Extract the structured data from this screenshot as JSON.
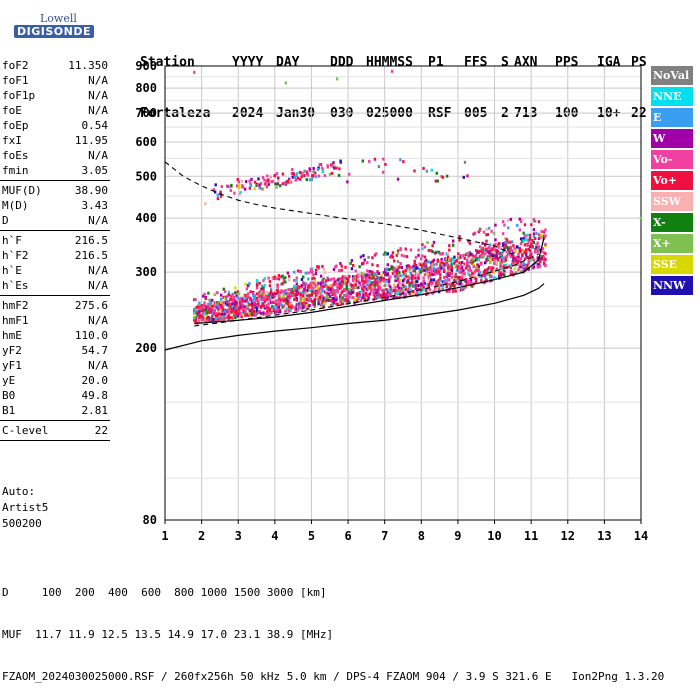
{
  "logo": {
    "line1": "Lowell",
    "line2": "DIGISONDE"
  },
  "header": {
    "labels": [
      "Station",
      "YYYY",
      "DAY",
      "DDD",
      "HHMMSS",
      "P1",
      "FFS",
      "S",
      "AXN",
      "PPS",
      "IGA",
      "PS"
    ],
    "values": [
      "Fortaleza",
      "2024",
      "Jan30",
      "030",
      "025000",
      "RSF",
      "005",
      "2",
      "713",
      "100",
      "10+",
      "22"
    ]
  },
  "params": {
    "g1": [
      {
        "k": "foF2",
        "v": "11.350"
      },
      {
        "k": "foF1",
        "v": "N/A"
      },
      {
        "k": "foF1p",
        "v": "N/A"
      },
      {
        "k": "foE",
        "v": "N/A"
      },
      {
        "k": "foEp",
        "v": "0.54"
      },
      {
        "k": "fxI",
        "v": "11.95"
      },
      {
        "k": "foEs",
        "v": "N/A"
      },
      {
        "k": "fmin",
        "v": "3.05"
      }
    ],
    "g2": [
      {
        "k": "MUF(D)",
        "v": "38.90"
      },
      {
        "k": "M(D)",
        "v": "3.43"
      },
      {
        "k": "D",
        "v": "N/A"
      }
    ],
    "g3": [
      {
        "k": "h`F",
        "v": "216.5"
      },
      {
        "k": "h`F2",
        "v": "216.5"
      },
      {
        "k": "h`E",
        "v": "N/A"
      },
      {
        "k": "h`Es",
        "v": "N/A"
      }
    ],
    "g4": [
      {
        "k": "hmF2",
        "v": "275.6"
      },
      {
        "k": "hmF1",
        "v": "N/A"
      },
      {
        "k": "hmE",
        "v": "110.0"
      },
      {
        "k": "yF2",
        "v": "54.7"
      },
      {
        "k": "yF1",
        "v": "N/A"
      },
      {
        "k": "yE",
        "v": "20.0"
      },
      {
        "k": "B0",
        "v": "49.8"
      },
      {
        "k": "B1",
        "v": "2.81"
      }
    ],
    "g5": [
      {
        "k": "C-level",
        "v": "22"
      }
    ]
  },
  "auto": {
    "l1": "Auto:",
    "l2": "Artist5",
    "l3": "500200"
  },
  "legend": [
    {
      "label": "NoVal",
      "color": "#808080"
    },
    {
      "label": "NNE",
      "color": "#00e0f0"
    },
    {
      "label": "E",
      "color": "#3a9ef0"
    },
    {
      "label": "W",
      "color": "#a000a8"
    },
    {
      "label": "Vo-",
      "color": "#f040a0"
    },
    {
      "label": "Vo+",
      "color": "#f01040"
    },
    {
      "label": "SSW",
      "color": "#f8b0b0"
    },
    {
      "label": "X-",
      "color": "#108010"
    },
    {
      "label": "X+",
      "color": "#80c050"
    },
    {
      "label": "SSE",
      "color": "#d8d800"
    },
    {
      "label": "NNW",
      "color": "#2010b0"
    }
  ],
  "chart_data": {
    "type": "scatter",
    "xlim": [
      1,
      14
    ],
    "ylim": [
      80,
      900
    ],
    "xticks": [
      "1",
      "2",
      "3",
      "4",
      "5",
      "6",
      "7",
      "8",
      "9",
      "10",
      "11",
      "12",
      "13",
      "14"
    ],
    "yticks": [
      {
        "v": 80,
        "t": "80"
      },
      {
        "v": 200,
        "t": "200"
      },
      {
        "v": 300,
        "t": "300"
      },
      {
        "v": 400,
        "t": "400"
      },
      {
        "v": 500,
        "t": "500"
      },
      {
        "v": 600,
        "t": "600"
      },
      {
        "v": 700,
        "t": "700"
      },
      {
        "v": 800,
        "t": "800"
      },
      {
        "v": 900,
        "t": "900"
      }
    ],
    "grid": true,
    "o_trace": [
      [
        1.8,
        228
      ],
      [
        3,
        232
      ],
      [
        4,
        236
      ],
      [
        5,
        242
      ],
      [
        6,
        250
      ],
      [
        7,
        258
      ],
      [
        8,
        266
      ],
      [
        9,
        276
      ],
      [
        10,
        288
      ],
      [
        10.8,
        300
      ],
      [
        11.2,
        320
      ],
      [
        11.35,
        360
      ]
    ],
    "profile": [
      [
        1,
        198
      ],
      [
        2,
        208
      ],
      [
        3,
        214
      ],
      [
        4,
        219
      ],
      [
        5,
        223
      ],
      [
        6,
        228
      ],
      [
        7,
        232
      ],
      [
        8,
        238
      ],
      [
        9,
        245
      ],
      [
        10,
        254
      ],
      [
        10.8,
        265
      ],
      [
        11.2,
        275
      ],
      [
        11.35,
        282
      ]
    ],
    "muf_curve": [
      [
        1,
        540
      ],
      [
        1.5,
        500
      ],
      [
        2,
        475
      ],
      [
        2.5,
        455
      ],
      [
        3,
        440
      ],
      [
        3.5,
        430
      ],
      [
        4,
        422
      ],
      [
        5,
        410
      ],
      [
        6,
        398
      ],
      [
        7,
        388
      ],
      [
        8,
        375
      ],
      [
        9,
        360
      ],
      [
        10,
        345
      ],
      [
        10.5,
        330
      ]
    ],
    "muf_lower": [
      [
        1.8,
        225
      ],
      [
        3,
        232
      ],
      [
        5,
        245
      ],
      [
        7,
        262
      ],
      [
        9,
        285
      ],
      [
        10.5,
        310
      ],
      [
        11.2,
        330
      ]
    ]
  },
  "footer": {
    "l1": "D     100  200  400  600  800 1000 1500 3000 [km]",
    "l2": "MUF  11.7 11.9 12.5 13.5 14.9 17.0 23.1 38.9 [MHz]",
    "l3": "FZAOM_2024030025000.RSF / 260fx256h 50 kHz 5.0 km / DPS-4 FZAOM 904 / 3.9 S 321.6 E   Ion2Png 1.3.20"
  }
}
